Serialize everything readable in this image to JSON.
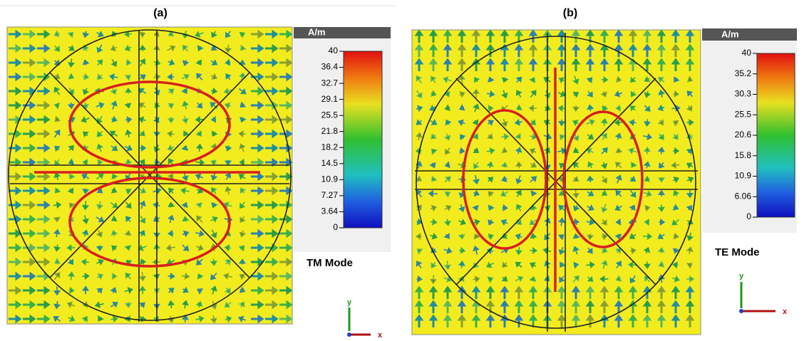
{
  "panels": [
    {
      "label": "(a)",
      "unit": "A/m",
      "scale": [
        "40",
        "36.4",
        "32.7",
        "29.1",
        "25.5",
        "21.8",
        "18.2",
        "14.5",
        "10.9",
        "7.27",
        "3.64",
        "0"
      ],
      "mode": "TM Mode",
      "axes": {
        "y": "y",
        "x": "x"
      }
    },
    {
      "label": "(b)",
      "unit": "A/m",
      "scale": [
        "40",
        "35.2",
        "30.3",
        "25.5",
        "20.6",
        "15.8",
        "10.9",
        "6.06",
        "0"
      ],
      "mode": "TE Mode",
      "axes": {
        "y": "y",
        "x": "x"
      }
    }
  ]
}
